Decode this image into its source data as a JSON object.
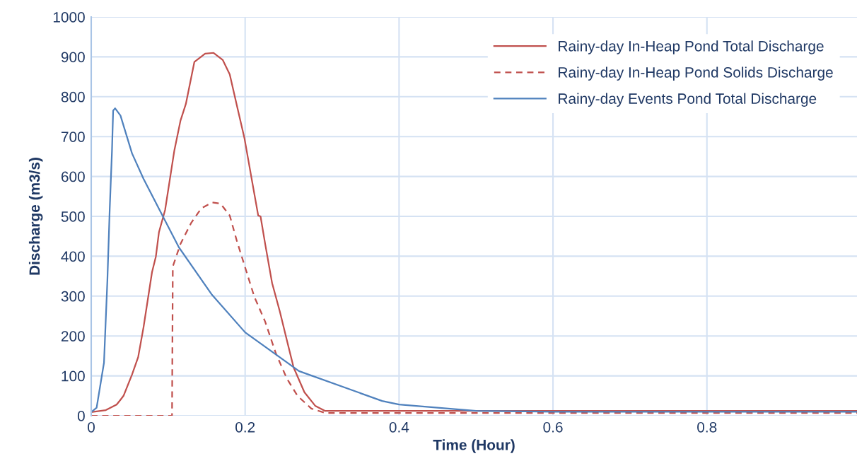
{
  "chart_data": {
    "type": "line",
    "xlabel": "Time (Hour)",
    "ylabel": "Discharge (m3/s)",
    "xlim": [
      0,
      0.995
    ],
    "xticks": [
      0,
      0.2,
      0.4,
      0.6,
      0.8
    ],
    "ylim": [
      0,
      1000
    ],
    "yticks": [
      0,
      100,
      200,
      300,
      400,
      500,
      600,
      700,
      800,
      900,
      1000
    ],
    "grid": true,
    "legend": "top right",
    "marker": "none",
    "series": [
      {
        "name": "Rainy-day In-Heap Pond Total Discharge",
        "color": "#c0504d",
        "line_style": "solid",
        "x": [
          0,
          0.019,
          0.033,
          0.038,
          0.042,
          0.053,
          0.061,
          0.068,
          0.079,
          0.084,
          0.088,
          0.096,
          0.108,
          0.116,
          0.123,
          0.134,
          0.148,
          0.159,
          0.171,
          0.18,
          0.189,
          0.199,
          0.208,
          0.217,
          0.22,
          0.226,
          0.235,
          0.245,
          0.254,
          0.263,
          0.277,
          0.291,
          0.304,
          0.995
        ],
        "values": [
          9,
          14,
          28,
          40,
          50,
          103,
          147,
          222,
          360,
          399,
          460,
          516,
          665,
          740,
          782,
          887,
          908,
          910,
          892,
          856,
          780,
          697,
          599,
          502,
          500,
          431,
          333,
          262,
          191,
          121,
          59,
          25,
          12,
          12
        ]
      },
      {
        "name": "Rainy-day In-Heap Pond Solids Discharge",
        "color": "#c0504d",
        "line_style": "dashed",
        "x": [
          0,
          0.105,
          0.106,
          0.116,
          0.13,
          0.143,
          0.157,
          0.168,
          0.18,
          0.189,
          0.199,
          0.212,
          0.226,
          0.24,
          0.254,
          0.268,
          0.286,
          0.304,
          0.995
        ],
        "values": [
          0,
          0,
          374,
          431,
          484,
          520,
          535,
          532,
          502,
          440,
          378,
          298,
          236,
          156,
          94,
          50,
          18,
          7,
          7
        ]
      },
      {
        "name": "Rainy-day Events Pond Total Discharge",
        "color": "#4f81bd",
        "line_style": "solid",
        "x": [
          0,
          0.007,
          0.0166,
          0.021,
          0.024,
          0.027,
          0.0285,
          0.031,
          0.038,
          0.053,
          0.068,
          0.084,
          0.095,
          0.114,
          0.157,
          0.2,
          0.27,
          0.378,
          0.4,
          0.5,
          0.6,
          0.995
        ],
        "values": [
          9,
          20,
          133,
          339,
          516,
          665,
          765,
          771,
          753,
          658,
          594,
          534,
          493,
          422,
          303,
          209,
          112,
          37,
          28,
          12,
          10,
          10
        ]
      }
    ]
  }
}
